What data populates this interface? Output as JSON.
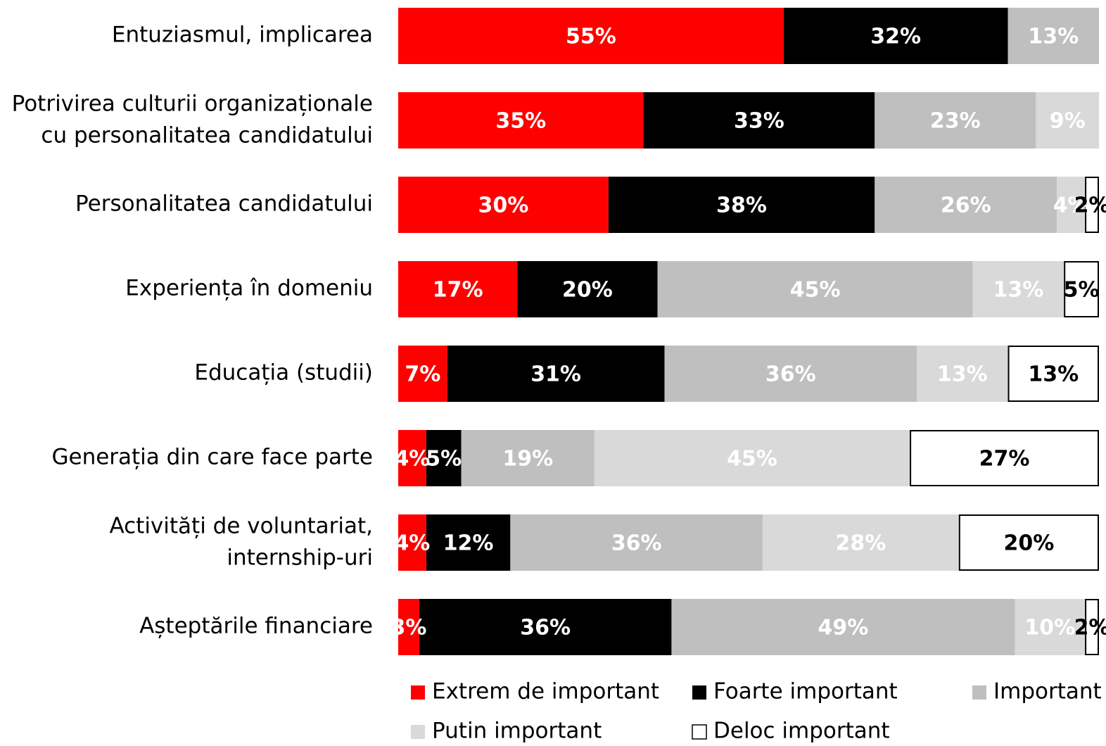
{
  "chart_data": {
    "type": "stacked-barh",
    "categories": [
      "Entuziasmul, implicarea",
      "Potrivirea culturii organizaționale\ncu personalitatea candidatului",
      "Personalitatea candidatului",
      "Experiența în domeniu",
      "Educația (studii)",
      "Generația din care face parte",
      "Activități de voluntariat,\ninternship-uri",
      "Așteptările financiare"
    ],
    "series": [
      {
        "name": "Extrem de important",
        "color": "#ff0000",
        "label_color": "#ffffff",
        "values": [
          55,
          35,
          30,
          17,
          7,
          4,
          4,
          3
        ],
        "value_labels": [
          "55%",
          "35%",
          "30%",
          "17%",
          "7%",
          "4%",
          "4%",
          "3%"
        ]
      },
      {
        "name": "Foarte important",
        "color": "#000000",
        "label_color": "#ffffff",
        "values": [
          32,
          33,
          38,
          20,
          31,
          5,
          12,
          36
        ],
        "value_labels": [
          "32%",
          "33%",
          "38%",
          "20%",
          "31%",
          "5%",
          "12%",
          "36%"
        ]
      },
      {
        "name": "Important",
        "color": "#bfbfbf",
        "label_color": "#ffffff",
        "values": [
          13,
          23,
          26,
          45,
          36,
          19,
          36,
          49
        ],
        "value_labels": [
          "13%",
          "23%",
          "26%",
          "45%",
          "36%",
          "19%",
          "36%",
          "49%"
        ]
      },
      {
        "name": "Putin important",
        "color": "#d9d9d9",
        "label_color": "#ffffff",
        "values": [
          null,
          9,
          4,
          13,
          13,
          45,
          28,
          10
        ],
        "value_labels": [
          null,
          "9%",
          "4%",
          "13%",
          "13%",
          "45%",
          "28%",
          "10%"
        ]
      },
      {
        "name": "Deloc important",
        "color": "#ffffff",
        "label_color": "#000000",
        "values": [
          null,
          null,
          2,
          5,
          13,
          27,
          20,
          2
        ],
        "value_labels": [
          null,
          null,
          "2%",
          "5%",
          "13%",
          "27%",
          "20%",
          "2%"
        ]
      }
    ],
    "xlim": [
      0,
      100
    ]
  }
}
